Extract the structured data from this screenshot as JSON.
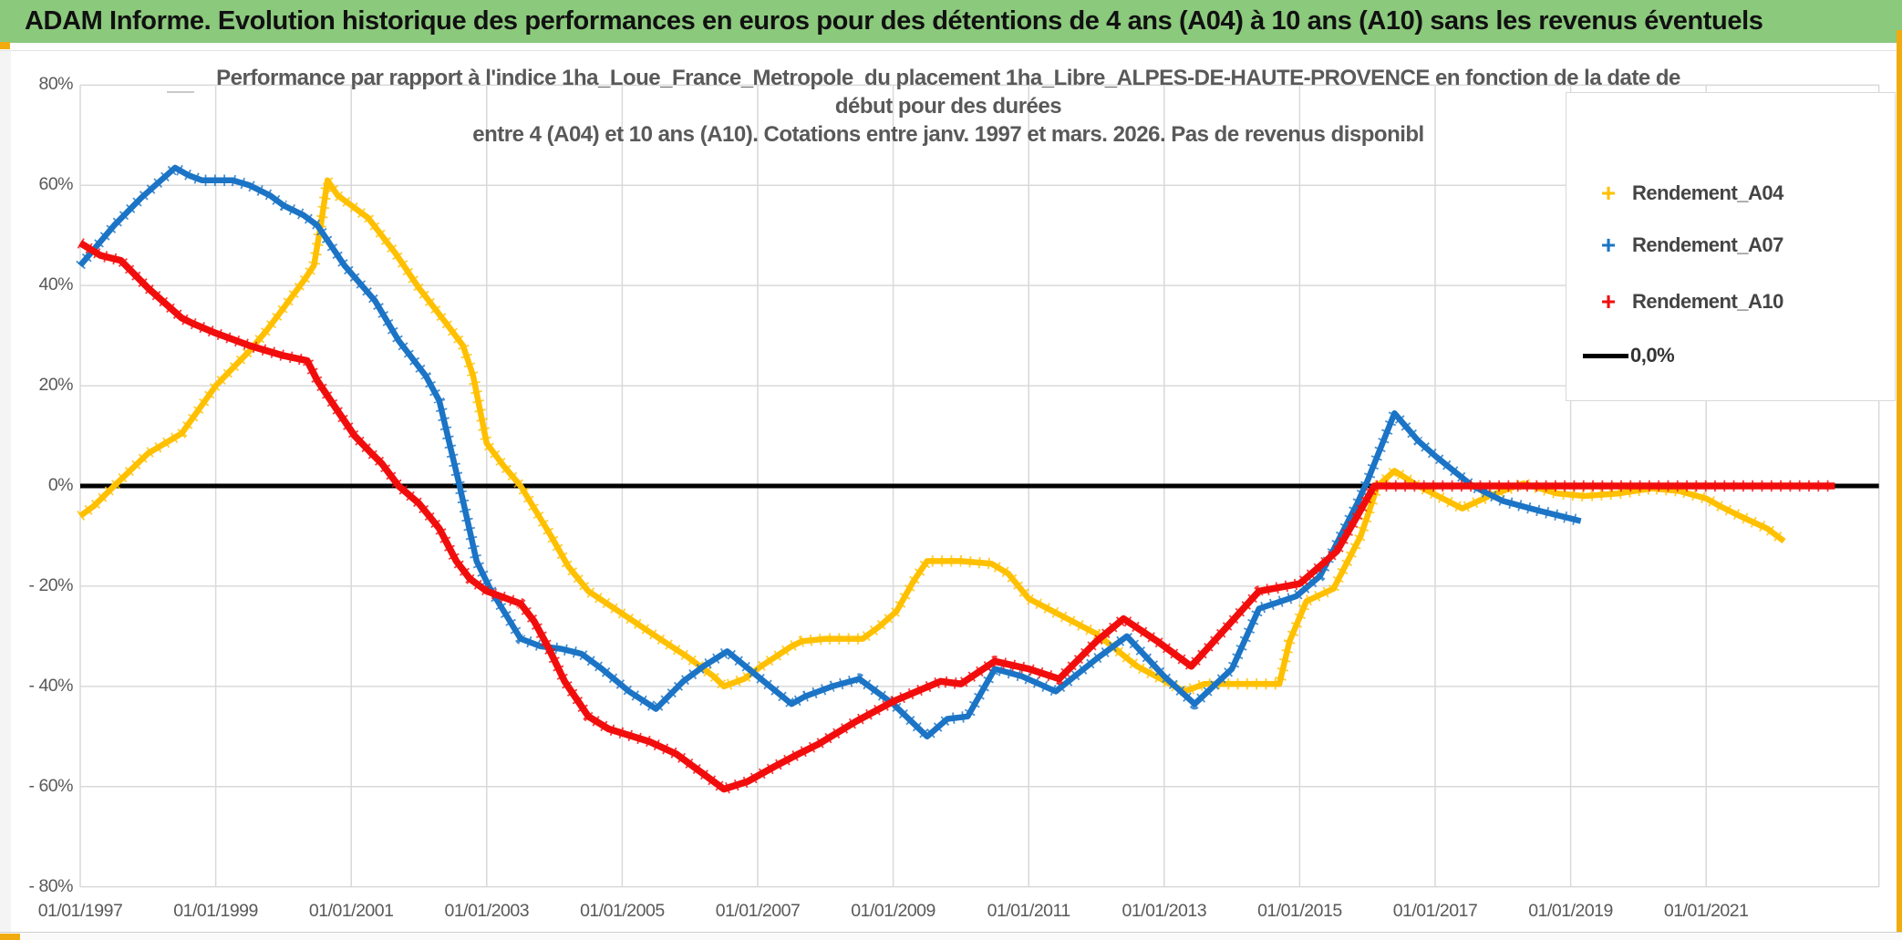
{
  "window": {
    "title": "ADAM Informe. Evolution historique des performances en euros pour des détentions de 4 ans (A04) à 10 ans (A10) sans les revenus éventuels"
  },
  "chart": {
    "subtitle_lines": [
      "Performance par rapport à l'indice 1ha_Loue_France_Metropole  du placement 1ha_Libre_ALPES-DE-HAUTE-PROVENCE en fonction de la date de",
      "début pour des durées",
      "entre 4 (A04) et 10 ans (A10). Cotations entre janv. 1997 et mars. 2026. Pas de revenus disponibl"
    ],
    "colors": {
      "a04": "#FFC000",
      "a07": "#1B74C5",
      "a10": "#F20D0D",
      "zero_line": "#000000",
      "grid": "#D9D9D9",
      "axis_text": "#595959",
      "title_bg": "#8BC97C",
      "accent": "#F2AB0F"
    },
    "legend": [
      {
        "label": "Rendement_A04",
        "marker": "+",
        "color_key": "a04"
      },
      {
        "label": "Rendement_A07",
        "marker": "+",
        "color_key": "a07"
      },
      {
        "label": "Rendement_A10",
        "marker": "+",
        "color_key": "a10"
      },
      {
        "label": "0,0%",
        "marker": "line",
        "color_key": "zero_line"
      }
    ]
  },
  "chart_data": {
    "type": "line",
    "title": "Performance par rapport à l'indice 1ha_Loue_France_Metropole du placement 1ha_Libre_ALPES-DE-HAUTE-PROVENCE en fonction de la date de début pour des durées entre 4 (A04) et 10 ans (A10). Cotations entre janv. 1997 et mars. 2026. Pas de revenus disponibl",
    "xlabel": "",
    "ylabel": "",
    "ylim": [
      -80,
      80
    ],
    "grid": true,
    "legend_position": "right",
    "x_axis": {
      "tick_years": [
        1997,
        1999,
        2001,
        2003,
        2005,
        2007,
        2009,
        2011,
        2013,
        2015,
        2017,
        2019,
        2021
      ],
      "tick_labels": [
        "01/01/1997",
        "01/01/1999",
        "01/01/2001",
        "01/01/2003",
        "01/01/2005",
        "01/01/2007",
        "01/01/2009",
        "01/01/2011",
        "01/01/2013",
        "01/01/2015",
        "01/01/2017",
        "01/01/2019",
        "01/01/2021"
      ],
      "start_year": 1997.0,
      "end_year": 2023.55
    },
    "y_axis": {
      "tick_values": [
        80,
        60,
        40,
        20,
        0,
        -20,
        -40,
        -60,
        -80
      ],
      "tick_labels": [
        "80%",
        "60%",
        "40%",
        "20%",
        "0%",
        "- 20%",
        "- 40%",
        "- 60%",
        "- 80%"
      ],
      "unit": "percent"
    },
    "zero_line": {
      "label": "0,0%",
      "value": 0.0
    },
    "series": [
      {
        "name": "Rendement_A04",
        "color_key": "a04",
        "marker": "+",
        "points": [
          [
            1997.0,
            -6
          ],
          [
            1997.2,
            -4
          ],
          [
            1997.5,
            0
          ],
          [
            1998.0,
            6.5
          ],
          [
            1998.5,
            10.5
          ],
          [
            1999.0,
            20
          ],
          [
            1999.5,
            27
          ],
          [
            1999.75,
            31
          ],
          [
            2000.0,
            35.5
          ],
          [
            2000.3,
            41
          ],
          [
            2000.45,
            44
          ],
          [
            2000.55,
            52
          ],
          [
            2000.65,
            61
          ],
          [
            2000.8,
            58
          ],
          [
            2000.95,
            56.5
          ],
          [
            2001.15,
            54.5
          ],
          [
            2001.25,
            53.5
          ],
          [
            2001.65,
            46.5
          ],
          [
            2002.0,
            39.5
          ],
          [
            2002.4,
            32.5
          ],
          [
            2002.65,
            28
          ],
          [
            2002.8,
            22
          ],
          [
            2003.0,
            8.5
          ],
          [
            2003.25,
            4
          ],
          [
            2003.5,
            0
          ],
          [
            2003.95,
            -10
          ],
          [
            2004.2,
            -16
          ],
          [
            2004.5,
            -21
          ],
          [
            2005.0,
            -25.5
          ],
          [
            2005.5,
            -30
          ],
          [
            2005.95,
            -34
          ],
          [
            2006.35,
            -38
          ],
          [
            2006.5,
            -40
          ],
          [
            2006.8,
            -38.5
          ],
          [
            2007.05,
            -36
          ],
          [
            2007.5,
            -32
          ],
          [
            2007.65,
            -31
          ],
          [
            2008.0,
            -30.5
          ],
          [
            2008.55,
            -30.5
          ],
          [
            2008.8,
            -28
          ],
          [
            2009.05,
            -25
          ],
          [
            2009.3,
            -19
          ],
          [
            2009.5,
            -15
          ],
          [
            2010.0,
            -15
          ],
          [
            2010.45,
            -15.5
          ],
          [
            2010.7,
            -17.5
          ],
          [
            2011.0,
            -22.5
          ],
          [
            2011.5,
            -26
          ],
          [
            2012.0,
            -29.5
          ],
          [
            2012.6,
            -36
          ],
          [
            2013.3,
            -41
          ],
          [
            2013.6,
            -39.5
          ],
          [
            2014.7,
            -39.5
          ],
          [
            2014.85,
            -31
          ],
          [
            2015.1,
            -23
          ],
          [
            2015.5,
            -20.5
          ],
          [
            2015.9,
            -10
          ],
          [
            2016.15,
            0
          ],
          [
            2016.4,
            3
          ],
          [
            2016.75,
            0
          ],
          [
            2017.4,
            -4.5
          ],
          [
            2017.8,
            -2
          ],
          [
            2018.3,
            0.5
          ],
          [
            2018.8,
            -1.5
          ],
          [
            2019.2,
            -2
          ],
          [
            2019.7,
            -1.5
          ],
          [
            2020.2,
            -0.5
          ],
          [
            2020.6,
            -1
          ],
          [
            2021.0,
            -2.5
          ],
          [
            2021.2,
            -4
          ],
          [
            2021.5,
            -6
          ],
          [
            2021.9,
            -8.5
          ],
          [
            2022.15,
            -11
          ]
        ]
      },
      {
        "name": "Rendement_A07",
        "color_key": "a07",
        "marker": "+",
        "points": [
          [
            1997.0,
            44
          ],
          [
            1997.5,
            52
          ],
          [
            1997.9,
            57.5
          ],
          [
            1998.4,
            63.5
          ],
          [
            1998.6,
            62
          ],
          [
            1998.8,
            61
          ],
          [
            1999.25,
            61
          ],
          [
            1999.5,
            60
          ],
          [
            1999.8,
            58
          ],
          [
            2000.0,
            56
          ],
          [
            2000.3,
            54
          ],
          [
            2000.5,
            52
          ],
          [
            2000.9,
            44
          ],
          [
            2001.35,
            37
          ],
          [
            2001.7,
            29
          ],
          [
            2002.1,
            22
          ],
          [
            2002.3,
            17
          ],
          [
            2002.6,
            0
          ],
          [
            2002.85,
            -15
          ],
          [
            2003.05,
            -20.5
          ],
          [
            2003.5,
            -30.5
          ],
          [
            2003.8,
            -32
          ],
          [
            2004.1,
            -32.5
          ],
          [
            2004.4,
            -33.5
          ],
          [
            2004.7,
            -36.5
          ],
          [
            2005.1,
            -41
          ],
          [
            2005.5,
            -44.5
          ],
          [
            2005.9,
            -39
          ],
          [
            2006.2,
            -36
          ],
          [
            2006.55,
            -33
          ],
          [
            2007.0,
            -38
          ],
          [
            2007.5,
            -43.5
          ],
          [
            2007.7,
            -42
          ],
          [
            2008.1,
            -40
          ],
          [
            2008.5,
            -38.5
          ],
          [
            2009.0,
            -43.5
          ],
          [
            2009.5,
            -50
          ],
          [
            2009.8,
            -46.5
          ],
          [
            2010.1,
            -46
          ],
          [
            2010.5,
            -36.5
          ],
          [
            2010.9,
            -38
          ],
          [
            2011.4,
            -41
          ],
          [
            2012.0,
            -34.5
          ],
          [
            2012.45,
            -30
          ],
          [
            2013.0,
            -38
          ],
          [
            2013.45,
            -43.5
          ],
          [
            2014.0,
            -36.5
          ],
          [
            2014.4,
            -24.5
          ],
          [
            2014.95,
            -22
          ],
          [
            2015.3,
            -18
          ],
          [
            2015.85,
            -3.5
          ],
          [
            2016.0,
            1
          ],
          [
            2016.4,
            14.5
          ],
          [
            2016.75,
            9
          ],
          [
            2017.0,
            6
          ],
          [
            2017.55,
            0
          ],
          [
            2018.0,
            -3
          ],
          [
            2018.55,
            -5
          ],
          [
            2019.0,
            -6.5
          ],
          [
            2019.15,
            -7
          ]
        ]
      },
      {
        "name": "Rendement_A10",
        "color_key": "a10",
        "marker": "+",
        "points": [
          [
            1997.0,
            48.5
          ],
          [
            1997.3,
            46
          ],
          [
            1997.6,
            45
          ],
          [
            1998.0,
            39.5
          ],
          [
            1998.5,
            33.5
          ],
          [
            1998.65,
            32.5
          ],
          [
            1999.0,
            30.5
          ],
          [
            1999.5,
            28
          ],
          [
            1999.75,
            27
          ],
          [
            2000.0,
            26
          ],
          [
            2000.35,
            25
          ],
          [
            2000.5,
            21
          ],
          [
            2000.8,
            15
          ],
          [
            2001.05,
            10
          ],
          [
            2001.3,
            6.5
          ],
          [
            2001.45,
            4.5
          ],
          [
            2001.7,
            0
          ],
          [
            2002.0,
            -3.5
          ],
          [
            2002.3,
            -8.5
          ],
          [
            2002.55,
            -15
          ],
          [
            2002.75,
            -18.5
          ],
          [
            2003.0,
            -21
          ],
          [
            2003.2,
            -22
          ],
          [
            2003.5,
            -23.5
          ],
          [
            2003.7,
            -27
          ],
          [
            2003.9,
            -32
          ],
          [
            2004.15,
            -39
          ],
          [
            2004.5,
            -46
          ],
          [
            2004.8,
            -48.5
          ],
          [
            2005.4,
            -51
          ],
          [
            2005.8,
            -53.5
          ],
          [
            2006.15,
            -57
          ],
          [
            2006.5,
            -60.5
          ],
          [
            2006.85,
            -59
          ],
          [
            2007.25,
            -56
          ],
          [
            2007.6,
            -53.5
          ],
          [
            2007.9,
            -51.5
          ],
          [
            2008.45,
            -47
          ],
          [
            2009.0,
            -43
          ],
          [
            2009.7,
            -39
          ],
          [
            2010.0,
            -39.5
          ],
          [
            2010.5,
            -35
          ],
          [
            2011.0,
            -36.5
          ],
          [
            2011.45,
            -38.5
          ],
          [
            2012.0,
            -31
          ],
          [
            2012.4,
            -26.5
          ],
          [
            2012.9,
            -31
          ],
          [
            2013.4,
            -36
          ],
          [
            2013.9,
            -28.5
          ],
          [
            2014.4,
            -21
          ],
          [
            2015.0,
            -19.5
          ],
          [
            2015.3,
            -16
          ],
          [
            2015.55,
            -13
          ],
          [
            2015.85,
            -6
          ],
          [
            2016.1,
            0
          ],
          [
            2019.0,
            0
          ],
          [
            2022.9,
            0
          ]
        ]
      }
    ]
  }
}
